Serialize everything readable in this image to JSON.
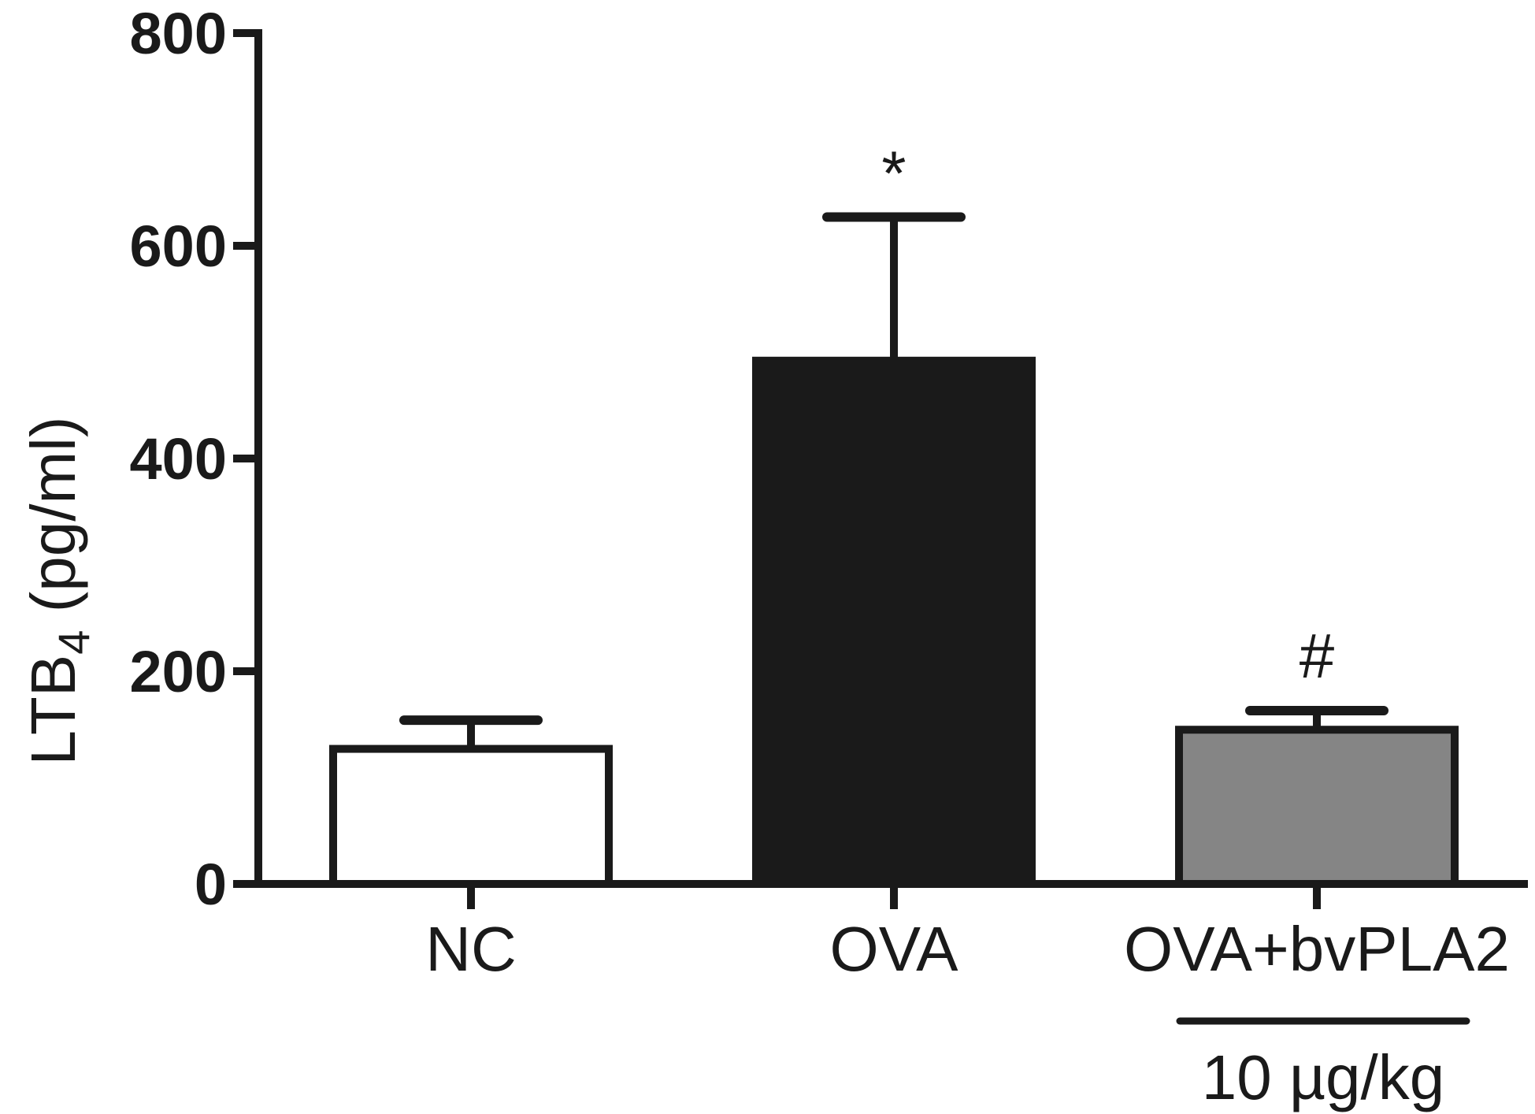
{
  "chart_data": {
    "type": "bar",
    "ylabel_main": "LTB",
    "ylabel_sub": "4",
    "ylabel_unit": " (pg/ml)",
    "ylim": [
      0,
      800
    ],
    "yticks": [
      0,
      200,
      400,
      600,
      800
    ],
    "categories": [
      "NC",
      "OVA",
      "OVA+bvPLA2"
    ],
    "values": [
      127,
      492,
      145
    ],
    "errors": [
      27,
      135,
      18
    ],
    "fill_colors": [
      "#ffffff",
      "#1a1a1a",
      "#858585"
    ],
    "annotations": [
      "",
      "*",
      "#"
    ],
    "dose_label": "10 µg/kg",
    "grid": false,
    "legend": "none"
  }
}
